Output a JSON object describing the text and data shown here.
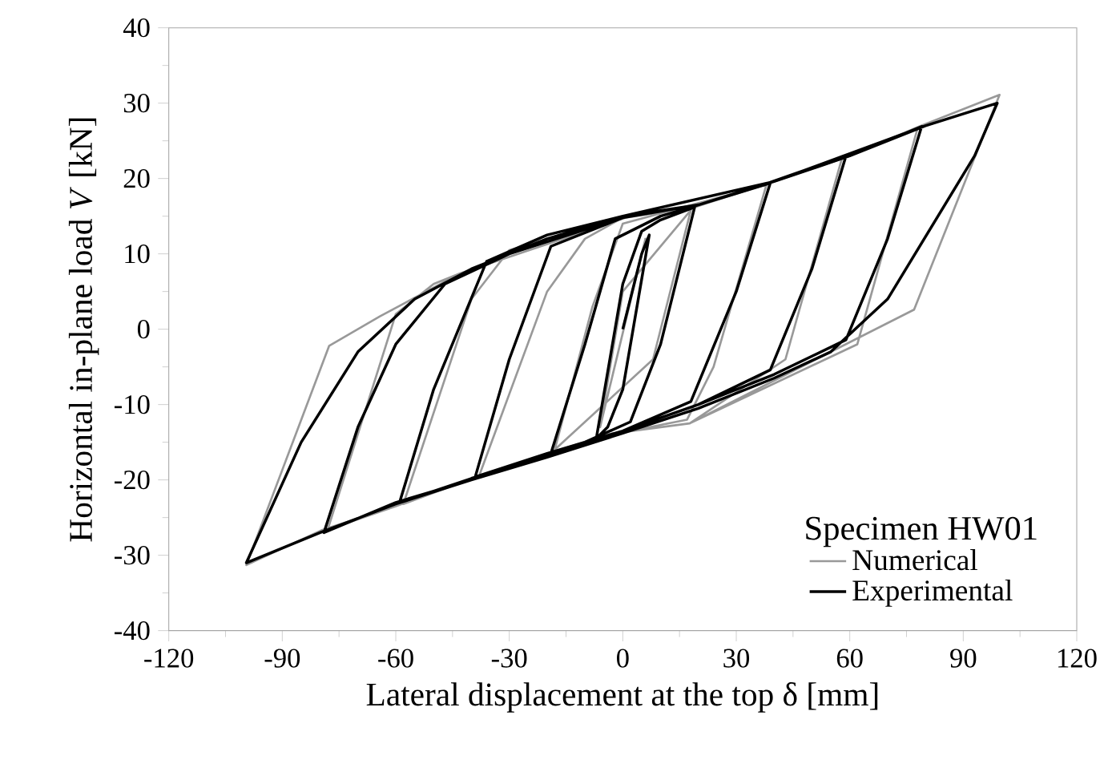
{
  "chart_data": {
    "type": "line",
    "xlabel": "Lateral displacement at the top δ [mm]",
    "ylabel": "Horizontal in-plane load *V* [kN]",
    "legend_title": "Specimen HW01",
    "xlim": [
      -120,
      120
    ],
    "ylim": [
      -40,
      40
    ],
    "xticks": [
      -120,
      -90,
      -60,
      -30,
      0,
      30,
      60,
      90,
      120
    ],
    "yticks": [
      -40,
      -30,
      -20,
      -10,
      0,
      10,
      20,
      30,
      40
    ],
    "grid": false,
    "legend": "bottom right",
    "marker": "none",
    "line_style": "solid",
    "series": [
      {
        "name": "Numerical",
        "color": "#999999",
        "x": [
          0,
          6,
          -6,
          0,
          18,
          8,
          -18,
          -8,
          0,
          38,
          24,
          17,
          -3,
          -38,
          -20,
          -10,
          0,
          19,
          38.8,
          58,
          43,
          17.7,
          -3.5,
          -38.8,
          -58,
          -40,
          -30,
          0,
          19,
          38.8,
          60,
          78,
          62,
          17.7,
          -3.5,
          -38.8,
          -60,
          -78,
          -60,
          -50,
          -43,
          0.8,
          19,
          38.8,
          60,
          78.4,
          99.6,
          77,
          17.7,
          -3.5,
          -38.8,
          -60,
          -79.7,
          -99.5,
          -77.6,
          -64.2,
          -43,
          0.8
        ],
        "values": [
          0,
          12,
          -13,
          5,
          15.8,
          -4,
          -16,
          3,
          14,
          19.2,
          -5,
          -12,
          -14,
          -19.5,
          5,
          12,
          14.8,
          16.2,
          19.4,
          22.8,
          -4,
          -12.5,
          -13.9,
          -19.6,
          -23.2,
          4,
          10.5,
          14.8,
          16.2,
          19.4,
          23,
          26.8,
          -2,
          -12.5,
          -13.9,
          -19.6,
          -23.5,
          -26.6,
          2,
          6,
          7.4,
          14.8,
          16.2,
          19.4,
          23,
          26.9,
          31.1,
          2.6,
          -12.5,
          -13.9,
          -19.6,
          -23.5,
          -26.7,
          -31.3,
          -2.2,
          1.7,
          7.4,
          14.8
        ]
      },
      {
        "name": "Experimental",
        "color": "#000000",
        "x": [
          0,
          5,
          7,
          0,
          -4,
          -7,
          0,
          5,
          10,
          19,
          10,
          2,
          -10,
          -19,
          -10,
          -2,
          10,
          20,
          30,
          39,
          30,
          18,
          0,
          -20,
          -39,
          -30,
          -19,
          0,
          20,
          39,
          59,
          50,
          39,
          20,
          0,
          -20,
          -40,
          -59,
          -50,
          -36,
          -20,
          0,
          20,
          40,
          60,
          79,
          70,
          59,
          40,
          20,
          0,
          -20,
          -40,
          -60,
          -79,
          -70,
          -60,
          -47,
          -30,
          0,
          20,
          40,
          60,
          80,
          99,
          93,
          70,
          55,
          40,
          20,
          0,
          -20,
          -40,
          -60,
          -80,
          -99.5,
          -85,
          -70,
          -55,
          -40,
          -20,
          0,
          40,
          80,
          99
        ],
        "values": [
          0,
          10,
          12.5,
          -8,
          -13,
          -14.5,
          6,
          13,
          14.5,
          16.2,
          -2,
          -12.3,
          -15,
          -16.5,
          -2,
          12,
          15,
          16.5,
          18,
          19.4,
          5,
          -9.6,
          -13.5,
          -16.5,
          -19.6,
          -4,
          11,
          14.8,
          16.5,
          19.5,
          23,
          8,
          -5.4,
          -10,
          -13.5,
          -16.7,
          -19.8,
          -23,
          -8,
          9,
          12.5,
          15,
          16.5,
          19.6,
          23,
          26.9,
          12,
          -1.4,
          -6,
          -10,
          -13.5,
          -16.8,
          -20,
          -23,
          -27,
          -13,
          -2,
          6,
          10,
          14.8,
          16.5,
          19.6,
          23,
          27,
          30,
          23,
          4,
          -3,
          -6.5,
          -10.5,
          -13.8,
          -17,
          -20,
          -23.2,
          -27,
          -31,
          -15,
          -3,
          4,
          8,
          12,
          15,
          19.6,
          27,
          30
        ]
      }
    ]
  }
}
